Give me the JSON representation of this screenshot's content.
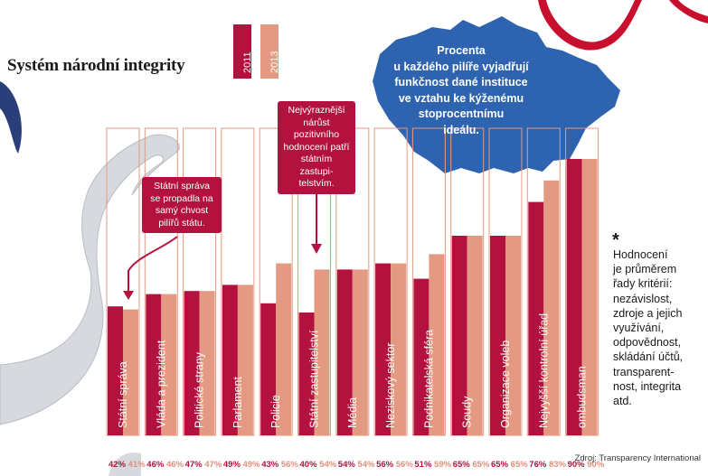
{
  "title": "Systém národní integrity",
  "legend": [
    {
      "label": "2011",
      "color": "#b3123e"
    },
    {
      "label": "2013",
      "color": "#e49a82"
    }
  ],
  "map_text": "Procenta\nu každého pilíře vyjadřují\nfunkčnost dané instituce\nve vztahu ke kýženému\nstoprocentnímu\nideálu.",
  "callouts": {
    "left": "Státní správa\nse propadla na\nsamý chvost\npilířů státu.",
    "middle": "Nejvýraznější\nnárůst pozitivního\nhodnocení patří\nstátním zastupi-\ntelstvím."
  },
  "note": {
    "star": "*",
    "text": "Hodnocení\nje průměrem\nřady kritérií:\nnezávislost,\nzdroje a jejich\nvyužívání,\nodpovědnost,\nskládání účtů,\ntransparent-\nnost, integrita\natd."
  },
  "source": "Zdroj: Transparency International",
  "chart_data": {
    "type": "bar",
    "title": "Systém národní integrity",
    "categories": [
      "Státní správa",
      "Vláda a prezident",
      "Politické strany",
      "Parlament",
      "Policie",
      "Státní zastupitelství",
      "Média",
      "Neziskový sektor",
      "Podnikatelská sféra",
      "Soudy",
      "Organizace voleb",
      "Nejvyšší kontrolní úřad",
      "ombudsman"
    ],
    "series": [
      {
        "name": "2011",
        "values": [
          42,
          46,
          47,
          49,
          43,
          40,
          54,
          56,
          51,
          65,
          65,
          76,
          90
        ],
        "color": "#b3123e"
      },
      {
        "name": "2013",
        "values": [
          41,
          46,
          47,
          49,
          56,
          54,
          54,
          56,
          59,
          65,
          65,
          83,
          90
        ],
        "color": "#e49a82"
      }
    ],
    "unit": "%",
    "ylim": [
      0,
      100
    ],
    "label_colors": {
      "2011": "#b3123e",
      "2013": "#e0907a"
    }
  }
}
